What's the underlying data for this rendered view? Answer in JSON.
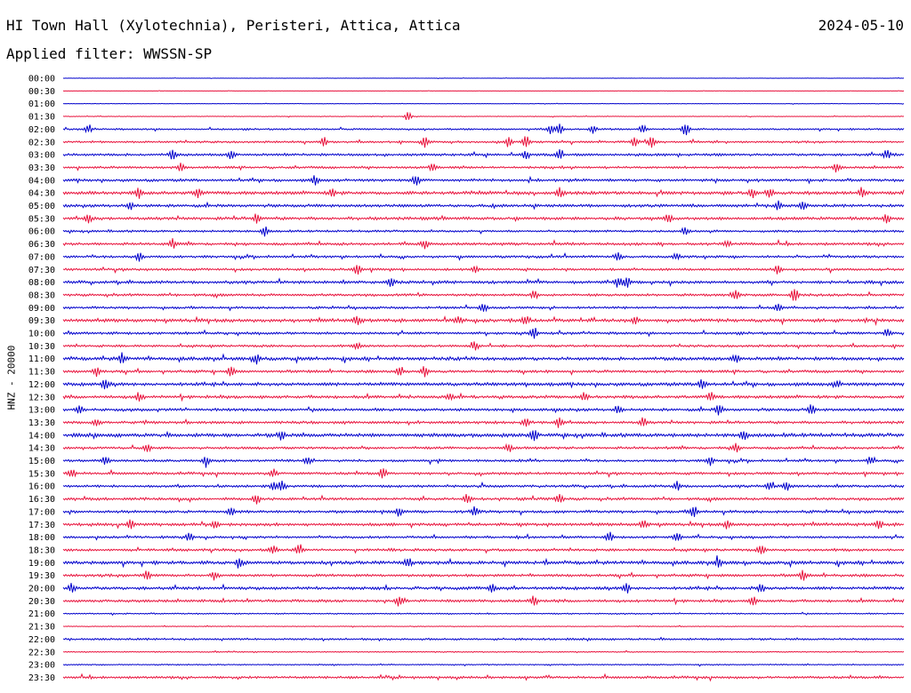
{
  "title": {
    "station": "HI Town Hall (Xylotechnia), Peristeri, Attica, Attica",
    "date": "2024-05-10",
    "filter": "Applied filter: WWSSN-SP",
    "channel": "HNZ - 20000"
  },
  "colors": {
    "even_rows": "#0000cc",
    "odd_rows": "#e8123c",
    "text": "#000000",
    "background": "#ffffff"
  },
  "chart_data": {
    "type": "line",
    "ylabel": "HNZ - 20000",
    "row_labels": [
      "00:00",
      "00:30",
      "01:00",
      "01:30",
      "02:00",
      "02:30",
      "03:00",
      "03:30",
      "04:00",
      "04:30",
      "05:00",
      "05:30",
      "06:00",
      "06:30",
      "07:00",
      "07:30",
      "08:00",
      "08:30",
      "09:00",
      "09:30",
      "10:00",
      "10:30",
      "11:00",
      "11:30",
      "12:00",
      "12:30",
      "13:00",
      "13:30",
      "14:00",
      "14:30",
      "15:00",
      "15:30",
      "16:00",
      "16:30",
      "17:00",
      "17:30",
      "18:00",
      "18:30",
      "19:00",
      "19:30",
      "20:00",
      "20:30",
      "21:00",
      "21:30",
      "22:00",
      "22:30",
      "23:00",
      "23:30"
    ],
    "row_minutes": 30,
    "noise_level": [
      0.2,
      0.2,
      0.3,
      0.4,
      1.0,
      1.2,
      1.5,
      1.4,
      1.6,
      2.0,
      1.7,
      1.8,
      1.3,
      1.6,
      1.4,
      1.4,
      1.7,
      1.5,
      1.4,
      2.0,
      1.5,
      1.4,
      2.0,
      1.6,
      2.0,
      1.8,
      1.6,
      1.6,
      2.2,
      1.5,
      1.4,
      1.5,
      1.5,
      1.6,
      1.6,
      1.8,
      1.4,
      1.5,
      2.0,
      1.6,
      1.8,
      1.6,
      0.8,
      0.5,
      1.2,
      0.7,
      0.7,
      1.4
    ],
    "events": [
      [],
      [],
      [],
      [
        [
          0.41,
          5
        ]
      ],
      [
        [
          0.03,
          5
        ],
        [
          0.58,
          5
        ],
        [
          0.59,
          6
        ],
        [
          0.63,
          5
        ],
        [
          0.69,
          5
        ],
        [
          0.74,
          7
        ]
      ],
      [
        [
          0.31,
          5
        ],
        [
          0.43,
          6
        ],
        [
          0.53,
          6
        ],
        [
          0.55,
          6
        ],
        [
          0.68,
          5
        ],
        [
          0.7,
          6
        ]
      ],
      [
        [
          0.13,
          5
        ],
        [
          0.2,
          5
        ],
        [
          0.55,
          5
        ],
        [
          0.59,
          5
        ],
        [
          0.98,
          5
        ]
      ],
      [
        [
          0.14,
          5
        ],
        [
          0.44,
          4
        ],
        [
          0.92,
          5
        ]
      ],
      [
        [
          0.3,
          5
        ],
        [
          0.42,
          5
        ]
      ],
      [
        [
          0.09,
          5
        ],
        [
          0.16,
          5
        ],
        [
          0.32,
          4
        ],
        [
          0.59,
          5
        ],
        [
          0.82,
          5
        ],
        [
          0.84,
          5
        ],
        [
          0.95,
          4
        ]
      ],
      [
        [
          0.08,
          4
        ],
        [
          0.85,
          5
        ],
        [
          0.88,
          4
        ]
      ],
      [
        [
          0.03,
          5
        ],
        [
          0.23,
          5
        ],
        [
          0.72,
          5
        ],
        [
          0.98,
          5
        ]
      ],
      [
        [
          0.24,
          5
        ],
        [
          0.74,
          4
        ]
      ],
      [
        [
          0.13,
          5
        ],
        [
          0.43,
          5
        ],
        [
          0.79,
          4
        ]
      ],
      [
        [
          0.09,
          5
        ],
        [
          0.66,
          5
        ],
        [
          0.73,
          4
        ]
      ],
      [
        [
          0.35,
          6
        ],
        [
          0.49,
          4
        ],
        [
          0.85,
          5
        ]
      ],
      [
        [
          0.39,
          5
        ],
        [
          0.66,
          6
        ],
        [
          0.67,
          7
        ]
      ],
      [
        [
          0.56,
          5
        ],
        [
          0.8,
          5
        ],
        [
          0.87,
          10
        ]
      ],
      [
        [
          0.5,
          5
        ],
        [
          0.85,
          5
        ]
      ],
      [
        [
          0.35,
          5
        ],
        [
          0.47,
          4
        ],
        [
          0.55,
          5
        ],
        [
          0.68,
          4
        ]
      ],
      [
        [
          0.56,
          6
        ],
        [
          0.98,
          4
        ]
      ],
      [
        [
          0.35,
          4
        ],
        [
          0.49,
          5
        ]
      ],
      [
        [
          0.07,
          6
        ],
        [
          0.23,
          5
        ],
        [
          0.8,
          5
        ]
      ],
      [
        [
          0.04,
          5
        ],
        [
          0.2,
          5
        ],
        [
          0.4,
          7
        ],
        [
          0.43,
          6
        ]
      ],
      [
        [
          0.05,
          5
        ],
        [
          0.76,
          6
        ],
        [
          0.92,
          4
        ]
      ],
      [
        [
          0.09,
          5
        ],
        [
          0.46,
          5
        ],
        [
          0.62,
          4
        ],
        [
          0.77,
          5
        ]
      ],
      [
        [
          0.02,
          5
        ],
        [
          0.66,
          5
        ],
        [
          0.78,
          6
        ],
        [
          0.89,
          5
        ]
      ],
      [
        [
          0.04,
          5
        ],
        [
          0.55,
          5
        ],
        [
          0.59,
          6
        ],
        [
          0.69,
          5
        ]
      ],
      [
        [
          0.26,
          5
        ],
        [
          0.56,
          7
        ],
        [
          0.81,
          5
        ]
      ],
      [
        [
          0.1,
          5
        ],
        [
          0.53,
          4
        ],
        [
          0.8,
          5
        ]
      ],
      [
        [
          0.05,
          5
        ],
        [
          0.17,
          5
        ],
        [
          0.29,
          4
        ],
        [
          0.77,
          5
        ],
        [
          0.96,
          4
        ]
      ],
      [
        [
          0.01,
          6
        ],
        [
          0.25,
          5
        ],
        [
          0.38,
          5
        ]
      ],
      [
        [
          0.25,
          5
        ],
        [
          0.26,
          6
        ],
        [
          0.73,
          5
        ],
        [
          0.84,
          5
        ],
        [
          0.86,
          5
        ]
      ],
      [
        [
          0.23,
          5
        ],
        [
          0.48,
          5
        ],
        [
          0.59,
          5
        ]
      ],
      [
        [
          0.2,
          5
        ],
        [
          0.4,
          5
        ],
        [
          0.49,
          5
        ],
        [
          0.75,
          6
        ]
      ],
      [
        [
          0.08,
          5
        ],
        [
          0.18,
          5
        ],
        [
          0.69,
          5
        ],
        [
          0.79,
          4
        ],
        [
          0.97,
          5
        ]
      ],
      [
        [
          0.15,
          5
        ],
        [
          0.65,
          5
        ],
        [
          0.73,
          5
        ]
      ],
      [
        [
          0.25,
          5
        ],
        [
          0.28,
          5
        ],
        [
          0.83,
          5
        ]
      ],
      [
        [
          0.21,
          6
        ],
        [
          0.41,
          5
        ],
        [
          0.78,
          5
        ]
      ],
      [
        [
          0.1,
          5
        ],
        [
          0.18,
          5
        ],
        [
          0.88,
          5
        ]
      ],
      [
        [
          0.01,
          5
        ],
        [
          0.51,
          5
        ],
        [
          0.67,
          5
        ],
        [
          0.83,
          5
        ]
      ],
      [
        [
          0.4,
          6
        ],
        [
          0.56,
          6
        ],
        [
          0.82,
          5
        ]
      ],
      [],
      [],
      [],
      [],
      [],
      []
    ]
  }
}
